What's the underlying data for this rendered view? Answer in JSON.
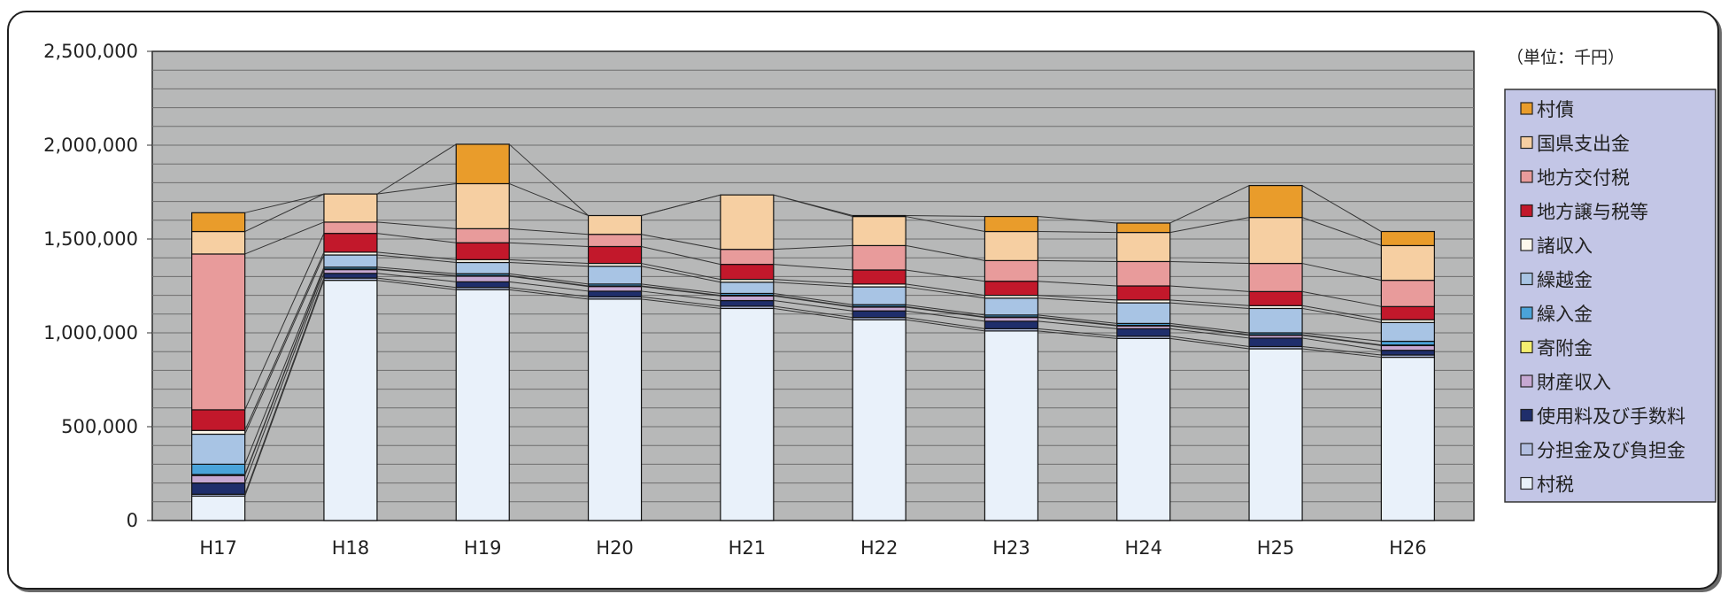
{
  "chart_data": {
    "type": "bar",
    "stacked": true,
    "unit_label": "（単位：千円）",
    "categories": [
      "H17",
      "H18",
      "H19",
      "H20",
      "H21",
      "H22",
      "H23",
      "H24",
      "H25",
      "H26"
    ],
    "ylim": [
      0,
      2500000
    ],
    "y_ticks": [
      "0",
      "500,000",
      "1,000,000",
      "1,500,000",
      "2,000,000",
      "2,500,000"
    ],
    "grid": true,
    "legend_position": "right",
    "series": [
      {
        "name": "村税",
        "color": "#e9f1fa",
        "values": [
          130000,
          1280000,
          1230000,
          1180000,
          1130000,
          1070000,
          1010000,
          970000,
          915000,
          870000
        ]
      },
      {
        "name": "分担金及び負担金",
        "color": "#b2bee0",
        "values": [
          10000,
          12000,
          12000,
          12000,
          12000,
          12000,
          12000,
          12000,
          12000,
          12000
        ]
      },
      {
        "name": "使用料及び手数料",
        "color": "#1f2e6b",
        "values": [
          60000,
          25000,
          30000,
          30000,
          30000,
          35000,
          40000,
          40000,
          45000,
          25000
        ]
      },
      {
        "name": "財産収入",
        "color": "#c6a8d2",
        "values": [
          40000,
          20000,
          30000,
          25000,
          25000,
          20000,
          20000,
          15000,
          15000,
          25000
        ]
      },
      {
        "name": "寄附金",
        "color": "#f5ee70",
        "values": [
          5000,
          3000,
          3000,
          3000,
          3000,
          3000,
          3000,
          3000,
          3000,
          3000
        ]
      },
      {
        "name": "繰入金",
        "color": "#4aa3d9",
        "values": [
          55000,
          10000,
          10000,
          10000,
          10000,
          10000,
          10000,
          10000,
          10000,
          20000
        ]
      },
      {
        "name": "繰越金",
        "color": "#a8c4e4",
        "values": [
          160000,
          65000,
          60000,
          95000,
          60000,
          95000,
          90000,
          110000,
          130000,
          100000
        ]
      },
      {
        "name": "諸収入",
        "color": "#fdf8ec",
        "values": [
          20000,
          15000,
          15000,
          15000,
          15000,
          15000,
          15000,
          15000,
          15000,
          15000
        ]
      },
      {
        "name": "地方譲与税等",
        "color": "#c2182b",
        "values": [
          110000,
          100000,
          90000,
          90000,
          80000,
          75000,
          75000,
          75000,
          75000,
          70000
        ]
      },
      {
        "name": "地方交付税",
        "color": "#e89b9b",
        "values": [
          830000,
          60000,
          75000,
          65000,
          80000,
          130000,
          110000,
          130000,
          150000,
          140000
        ]
      },
      {
        "name": "国県支出金",
        "color": "#f6cfa2",
        "values": [
          120000,
          150000,
          240000,
          100000,
          290000,
          155000,
          155000,
          155000,
          245000,
          185000
        ]
      },
      {
        "name": "村債",
        "color": "#e99c2b",
        "values": [
          100000,
          0,
          210000,
          0,
          0,
          5000,
          80000,
          50000,
          170000,
          75000
        ]
      }
    ]
  }
}
